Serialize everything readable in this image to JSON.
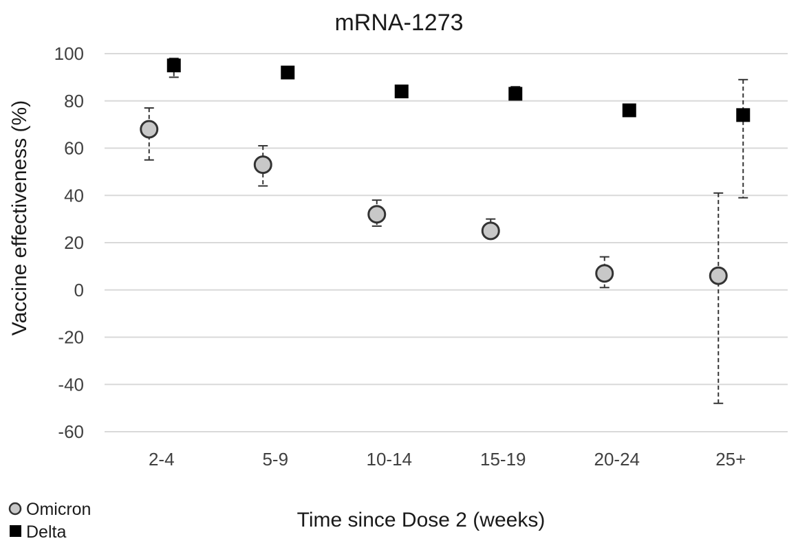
{
  "chart_data": {
    "type": "scatter",
    "title": "mRNA-1273",
    "xlabel": "Time since Dose 2 (weeks)",
    "ylabel": "Vaccine effectiveness (%)",
    "categories": [
      "2-4",
      "5-9",
      "10-14",
      "15-19",
      "20-24",
      "25+"
    ],
    "ylim": [
      -60,
      100
    ],
    "yticks": [
      100,
      80,
      60,
      40,
      20,
      0,
      -20,
      -40,
      -60
    ],
    "grid": true,
    "legend_position": "bottom-left",
    "series": [
      {
        "name": "Omicron",
        "marker": "circle",
        "color": "#c8c8c8",
        "values": [
          68,
          53,
          32,
          25,
          7,
          6
        ],
        "ci_low": [
          55,
          44,
          27,
          23,
          1,
          -48
        ],
        "ci_high": [
          77,
          61,
          38,
          30,
          14,
          41
        ]
      },
      {
        "name": "Delta",
        "marker": "square",
        "color": "#000000",
        "values": [
          95,
          92,
          84,
          83,
          76,
          74
        ],
        "ci_low": [
          90,
          90,
          82,
          81,
          74,
          39
        ],
        "ci_high": [
          98,
          94,
          86,
          86,
          78,
          89
        ]
      }
    ]
  }
}
